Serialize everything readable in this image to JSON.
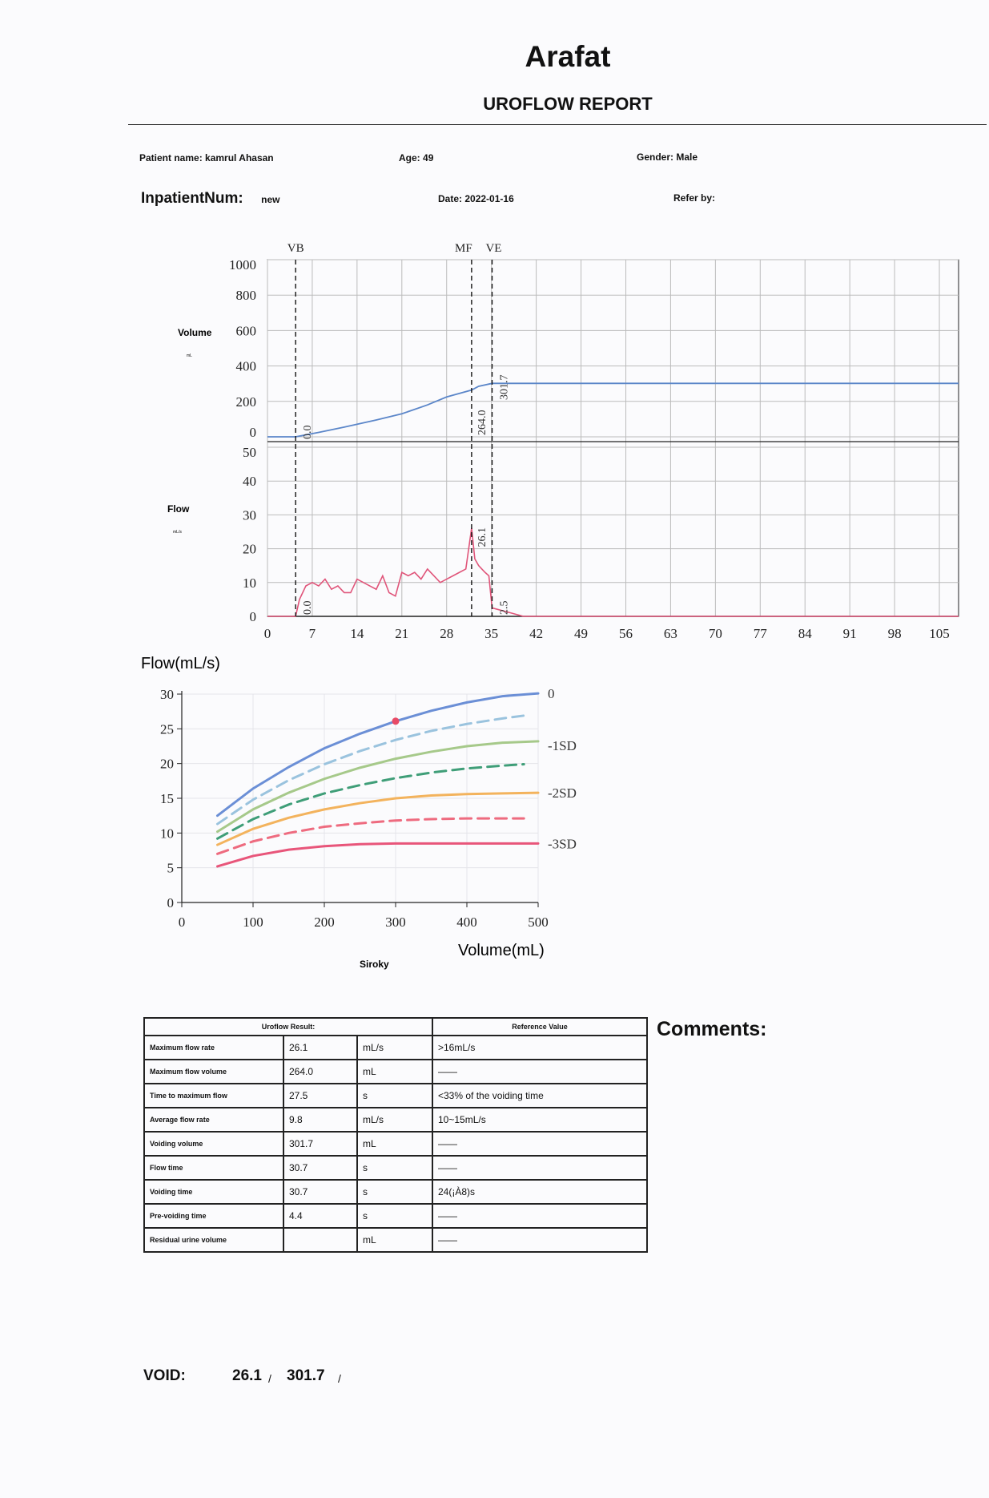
{
  "header": {
    "title": "Arafat",
    "subtitle": "UROFLOW REPORT"
  },
  "patient": {
    "name_label": "Patient name:",
    "name": "kamrul Ahasan",
    "age_label": "Age:",
    "age": "49",
    "gender_label": "Gender:",
    "gender": "Male",
    "inpatient_label": "InpatientNum:",
    "inpatient": "new",
    "date_label": "Date:",
    "date": "2022-01-16",
    "refer_label": "Refer by:",
    "refer": ""
  },
  "chart_data": [
    {
      "type": "line",
      "ylabel": "Volume",
      "ylabel_unit": "mL",
      "ylim": [
        0,
        1000
      ],
      "yticks": [
        "1000",
        "800",
        "600",
        "400",
        "200",
        "0"
      ],
      "xlim": [
        0,
        108
      ],
      "markers": [
        {
          "label": "VB",
          "x": 4.4
        },
        {
          "label": "MF",
          "x": 31.9
        },
        {
          "label": "VE",
          "x": 35.1
        }
      ],
      "annotations": [
        "0.0",
        "264.0",
        "301.7"
      ],
      "series": [
        {
          "color": "#5b86c9",
          "x": [
            0,
            4.4,
            8,
            12,
            17,
            21,
            25,
            28,
            31.9,
            33,
            35.1,
            40,
            60,
            80,
            100,
            108
          ],
          "y": [
            0,
            0,
            25,
            55,
            95,
            130,
            180,
            225,
            264,
            285,
            301.7,
            301.7,
            301.7,
            301.7,
            301.7,
            301.7
          ]
        }
      ]
    },
    {
      "type": "line",
      "ylabel": "Flow",
      "ylabel_unit": "mL/s",
      "ylim": [
        0,
        50
      ],
      "yticks": [
        "50",
        "40",
        "30",
        "20",
        "10",
        "0"
      ],
      "xticks": [
        "0",
        "7",
        "14",
        "21",
        "28",
        "35",
        "42",
        "49",
        "56",
        "63",
        "70",
        "77",
        "84",
        "91",
        "98",
        "105"
      ],
      "annotations": [
        "0.0",
        "26.1",
        "2.5"
      ],
      "series": [
        {
          "color": "#e0557a",
          "x": [
            0,
            4.4,
            5,
            6,
            7,
            8,
            9,
            10,
            11,
            12,
            13,
            14,
            15,
            16,
            17,
            18,
            19,
            20,
            21,
            22,
            23,
            24,
            25,
            26,
            27,
            28,
            29,
            30,
            31,
            31.9,
            32.4,
            33,
            33.5,
            34,
            34.6,
            35.1,
            40,
            60,
            80,
            100,
            108
          ],
          "y": [
            0,
            0,
            5,
            9,
            10,
            9,
            11,
            8,
            9,
            7,
            7,
            11,
            10,
            9,
            8,
            12,
            7,
            6,
            13,
            12,
            13,
            11,
            14,
            12,
            10,
            11,
            12,
            13,
            14,
            26.1,
            17,
            15,
            14,
            13,
            12,
            2.5,
            0,
            0,
            0,
            0,
            0
          ]
        }
      ]
    },
    {
      "type": "line",
      "title": "Siroky",
      "xlabel": "Volume(mL)",
      "ylabel": "Flow(mL/s)",
      "xlim": [
        0,
        500
      ],
      "ylim": [
        0,
        30
      ],
      "xticks": [
        "0",
        "100",
        "200",
        "300",
        "400",
        "500"
      ],
      "yticks": [
        "0",
        "5",
        "10",
        "15",
        "20",
        "25",
        "30"
      ],
      "sd_labels": [
        "0",
        "-1SD",
        "-2SD",
        "-3SD"
      ],
      "point": {
        "x": 300,
        "y": 26.1,
        "color": "#e84a66"
      },
      "series": [
        {
          "color": "#6b8fd6",
          "dash": false,
          "x": [
            50,
            100,
            150,
            200,
            250,
            300,
            350,
            400,
            450,
            500
          ],
          "y": [
            12.5,
            16.4,
            19.5,
            22.2,
            24.3,
            26.1,
            27.6,
            28.8,
            29.7,
            30.1
          ]
        },
        {
          "color": "#9ac3de",
          "dash": true,
          "x": [
            50,
            100,
            150,
            200,
            250,
            300,
            350,
            400,
            450,
            480
          ],
          "y": [
            11.3,
            14.8,
            17.6,
            19.9,
            21.8,
            23.4,
            24.7,
            25.7,
            26.5,
            26.9
          ]
        },
        {
          "color": "#a6c98a",
          "dash": false,
          "x": [
            50,
            100,
            150,
            200,
            250,
            300,
            350,
            400,
            450,
            500
          ],
          "y": [
            10.2,
            13.4,
            15.8,
            17.8,
            19.4,
            20.7,
            21.7,
            22.5,
            23.0,
            23.2
          ]
        },
        {
          "color": "#3f9e78",
          "dash": true,
          "x": [
            50,
            100,
            150,
            200,
            250,
            300,
            350,
            400,
            450,
            480
          ],
          "y": [
            9.2,
            12.0,
            14.1,
            15.7,
            16.9,
            17.9,
            18.7,
            19.3,
            19.7,
            19.9
          ]
        },
        {
          "color": "#f3b35d",
          "dash": false,
          "x": [
            50,
            100,
            150,
            200,
            250,
            300,
            350,
            400,
            450,
            500
          ],
          "y": [
            8.3,
            10.6,
            12.2,
            13.4,
            14.3,
            15.0,
            15.4,
            15.6,
            15.7,
            15.8
          ]
        },
        {
          "color": "#ee6b7f",
          "dash": true,
          "x": [
            50,
            100,
            150,
            200,
            250,
            300,
            350,
            400,
            450,
            480
          ],
          "y": [
            7.0,
            8.8,
            10.0,
            10.9,
            11.4,
            11.8,
            12.0,
            12.1,
            12.1,
            12.1
          ]
        },
        {
          "color": "#e8557a",
          "dash": false,
          "x": [
            50,
            100,
            150,
            200,
            250,
            300,
            350,
            400,
            450,
            500
          ],
          "y": [
            5.2,
            6.7,
            7.6,
            8.1,
            8.4,
            8.5,
            8.5,
            8.5,
            8.5,
            8.5
          ]
        }
      ]
    }
  ],
  "results": {
    "header_left": "Uroflow Result:",
    "header_right": "Reference Value",
    "rows": [
      {
        "label": "Maximum flow rate",
        "value": "26.1",
        "unit": "mL/s",
        "ref": ">16mL/s"
      },
      {
        "label": "Maximum flow volume",
        "value": "264.0",
        "unit": "mL",
        "ref": "——"
      },
      {
        "label": "Time to maximum flow",
        "value": "27.5",
        "unit": "s",
        "ref": "<33% of the voiding time"
      },
      {
        "label": "Average flow rate",
        "value": "9.8",
        "unit": "mL/s",
        "ref": "10~15mL/s"
      },
      {
        "label": "Voiding volume",
        "value": "301.7",
        "unit": "mL",
        "ref": "——"
      },
      {
        "label": "Flow time",
        "value": "30.7",
        "unit": "s",
        "ref": "——"
      },
      {
        "label": "Voiding time",
        "value": "30.7",
        "unit": "s",
        "ref": "24(¡À8)s"
      },
      {
        "label": "Pre-voiding time",
        "value": "4.4",
        "unit": "s",
        "ref": "——"
      },
      {
        "label": "Residual urine volume",
        "value": "",
        "unit": "mL",
        "ref": "——"
      }
    ]
  },
  "comments_label": "Comments:",
  "void": {
    "label": "VOID:",
    "max_flow": "26.1",
    "sep1": "/",
    "volume": "301.7",
    "sep2": "/"
  }
}
